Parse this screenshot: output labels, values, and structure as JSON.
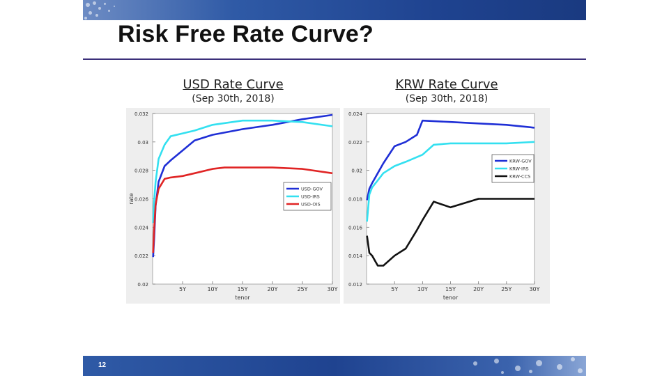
{
  "slide": {
    "title": "Risk Free Rate Curve?",
    "page_number": "12"
  },
  "chart_data": [
    {
      "type": "line",
      "title": "USD Rate Curve",
      "subtitle": "(Sep 30th, 2018)",
      "xlabel": "tenor",
      "ylabel": "rate",
      "xlim": [
        0,
        30
      ],
      "ylim": [
        0.02,
        0.032
      ],
      "x_ticks": [
        5,
        10,
        15,
        20,
        25,
        30
      ],
      "x_tick_labels": [
        "5Y",
        "10Y",
        "15Y",
        "20Y",
        "25Y",
        "30Y"
      ],
      "y_ticks": [
        0.02,
        0.022,
        0.024,
        0.026,
        0.028,
        0.03,
        0.032
      ],
      "y_tick_labels": [
        "0.02",
        "0.022",
        "0.024",
        "0.026",
        "0.028",
        "0.03",
        "0.032"
      ],
      "legend_position": "right",
      "series": [
        {
          "name": "USD-GOV",
          "color": "#1f2fd6",
          "x": [
            0.08,
            0.25,
            0.5,
            1,
            2,
            3,
            5,
            7,
            10,
            15,
            20,
            25,
            30
          ],
          "y": [
            0.0219,
            0.0231,
            0.0255,
            0.0272,
            0.0283,
            0.0287,
            0.0294,
            0.0301,
            0.0305,
            0.0309,
            0.0312,
            0.0316,
            0.0319
          ]
        },
        {
          "name": "USD-IRS",
          "color": "#33e0f0",
          "x": [
            0.08,
            0.25,
            0.5,
            1,
            2,
            3,
            5,
            7,
            10,
            15,
            20,
            25,
            30
          ],
          "y": [
            0.0243,
            0.0258,
            0.0272,
            0.0288,
            0.0298,
            0.0304,
            0.0306,
            0.0308,
            0.0312,
            0.0315,
            0.0315,
            0.0314,
            0.0311
          ]
        },
        {
          "name": "USD-OIS",
          "color": "#e02424",
          "x": [
            0.08,
            0.25,
            0.5,
            1,
            2,
            3,
            5,
            7,
            10,
            12,
            15,
            20,
            25,
            30
          ],
          "y": [
            0.0222,
            0.0238,
            0.0256,
            0.0267,
            0.0274,
            0.0275,
            0.0276,
            0.0278,
            0.0281,
            0.0282,
            0.0282,
            0.0282,
            0.0281,
            0.0278
          ]
        }
      ]
    },
    {
      "type": "line",
      "title": "KRW Rate Curve",
      "subtitle": "(Sep 30th, 2018)",
      "xlabel": "tenor",
      "ylabel": "",
      "xlim": [
        0,
        30
      ],
      "ylim": [
        0.012,
        0.024
      ],
      "x_ticks": [
        5,
        10,
        15,
        20,
        25,
        30
      ],
      "x_tick_labels": [
        "5Y",
        "10Y",
        "15Y",
        "20Y",
        "25Y",
        "30Y"
      ],
      "y_ticks": [
        0.012,
        0.014,
        0.016,
        0.018,
        0.02,
        0.022,
        0.024
      ],
      "y_tick_labels": [
        "0.012",
        "0.014",
        "0.016",
        "0.018",
        "0.02",
        "0.022",
        "0.024"
      ],
      "legend_position": "right",
      "series": [
        {
          "name": "KRW-GOV",
          "color": "#1f2fd6",
          "x": [
            0.08,
            0.5,
            1,
            2,
            3,
            5,
            7,
            9,
            10,
            15,
            20,
            25,
            30
          ],
          "y": [
            0.0179,
            0.0187,
            0.0191,
            0.0198,
            0.0205,
            0.0217,
            0.022,
            0.0225,
            0.0235,
            0.0234,
            0.0233,
            0.0232,
            0.023
          ]
        },
        {
          "name": "KRW-IRS",
          "color": "#33e0f0",
          "x": [
            0.08,
            0.5,
            1,
            2,
            3,
            5,
            7,
            10,
            12,
            15,
            20,
            25,
            30
          ],
          "y": [
            0.0164,
            0.0183,
            0.0188,
            0.0193,
            0.0198,
            0.0203,
            0.0206,
            0.0211,
            0.0218,
            0.0219,
            0.0219,
            0.0219,
            0.022
          ]
        },
        {
          "name": "KRW-CCS",
          "color": "#111111",
          "x": [
            0.08,
            0.5,
            1,
            2,
            3,
            5,
            7,
            9,
            10,
            12,
            15,
            20,
            25,
            30
          ],
          "y": [
            0.0154,
            0.0142,
            0.014,
            0.0133,
            0.0133,
            0.014,
            0.0145,
            0.0158,
            0.0165,
            0.0178,
            0.0174,
            0.018,
            0.018,
            0.018
          ]
        }
      ]
    }
  ]
}
